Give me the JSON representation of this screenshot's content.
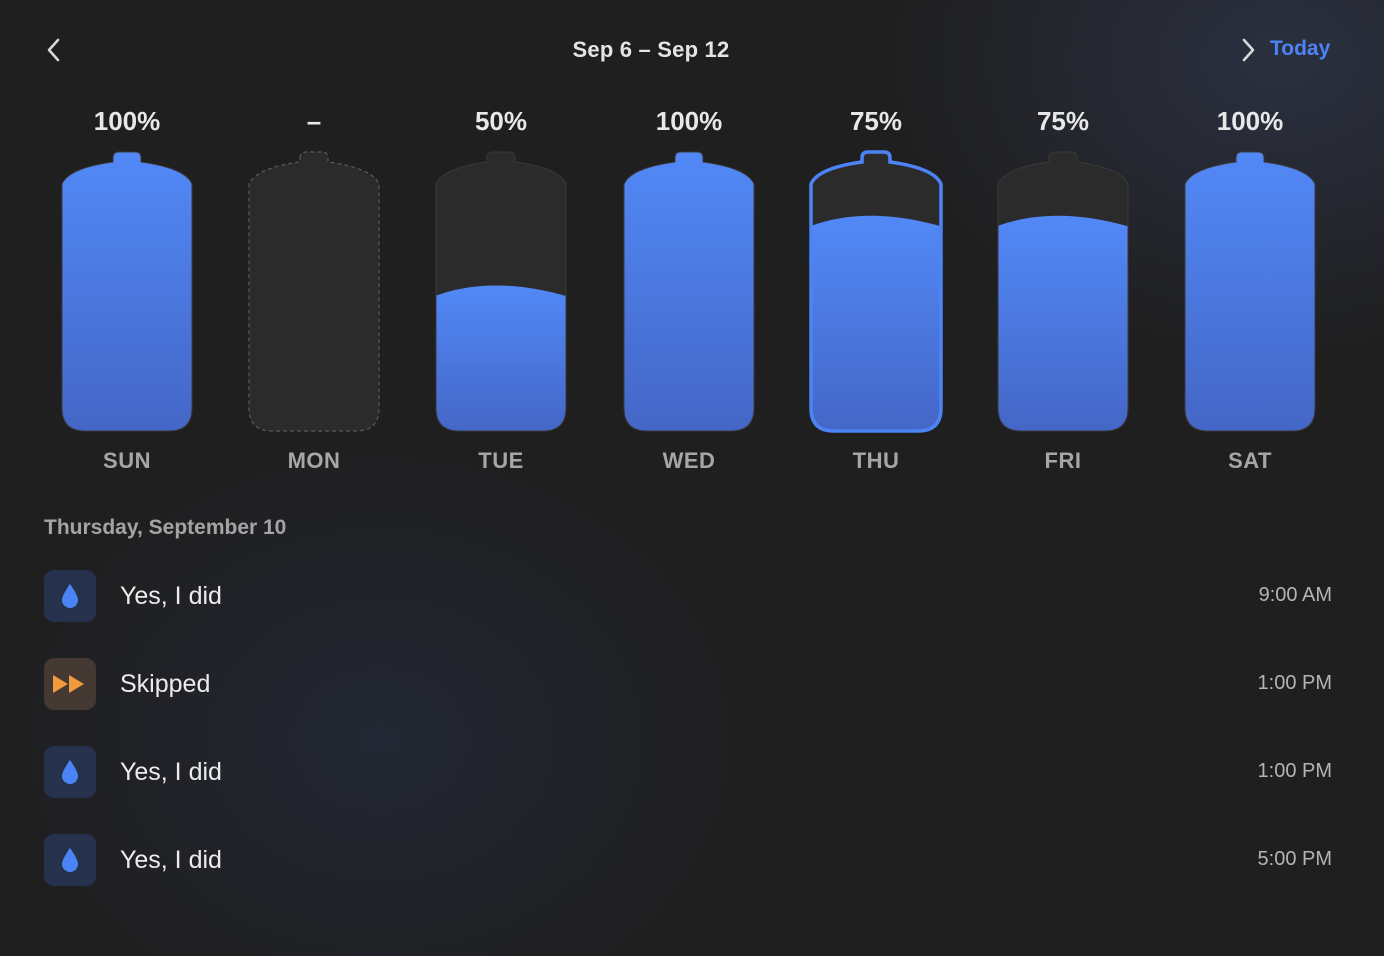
{
  "header": {
    "range_title": "Sep 6 – Sep 12",
    "today_label": "Today"
  },
  "colors": {
    "accent": "#4d84f5",
    "fill_top": "#5289f7",
    "fill_bottom": "#4466c6",
    "empty_bottle": "#2b2b2c",
    "skipped_orange": "#f29a3e"
  },
  "week": [
    {
      "label": "SUN",
      "percent_text": "100%",
      "fill": 1.0,
      "status": "complete"
    },
    {
      "label": "MON",
      "percent_text": "–",
      "fill": null,
      "status": "no-data"
    },
    {
      "label": "TUE",
      "percent_text": "50%",
      "fill": 0.5,
      "status": "partial"
    },
    {
      "label": "WED",
      "percent_text": "100%",
      "fill": 1.0,
      "status": "complete"
    },
    {
      "label": "THU",
      "percent_text": "75%",
      "fill": 0.75,
      "status": "partial",
      "selected": true
    },
    {
      "label": "FRI",
      "percent_text": "75%",
      "fill": 0.75,
      "status": "partial"
    },
    {
      "label": "SAT",
      "percent_text": "100%",
      "fill": 1.0,
      "status": "complete"
    }
  ],
  "detail": {
    "date_heading": "Thursday, September 10",
    "entries": [
      {
        "label": "Yes, I did",
        "time": "9:00 AM",
        "type": "taken",
        "icon": "water-drop-icon"
      },
      {
        "label": "Skipped",
        "time": "1:00 PM",
        "type": "skipped",
        "icon": "fast-forward-icon"
      },
      {
        "label": "Yes, I did",
        "time": "1:00 PM",
        "type": "taken",
        "icon": "water-drop-icon"
      },
      {
        "label": "Yes, I did",
        "time": "5:00 PM",
        "type": "taken",
        "icon": "water-drop-icon"
      }
    ]
  }
}
